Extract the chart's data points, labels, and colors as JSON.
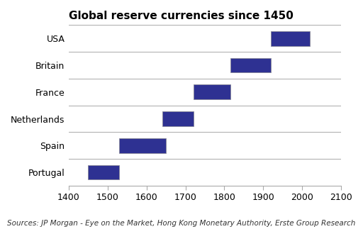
{
  "title": "Global reserve currencies since 1450",
  "categories": [
    "Portugal",
    "Spain",
    "Netherlands",
    "France",
    "Britain",
    "USA"
  ],
  "bar_starts": [
    1450,
    1530,
    1640,
    1720,
    1815,
    1920
  ],
  "bar_ends": [
    1530,
    1650,
    1720,
    1815,
    1920,
    2020
  ],
  "bar_color": "#2e3192",
  "bar_edge_color": "#888899",
  "xlim": [
    1400,
    2100
  ],
  "xticks": [
    1400,
    1500,
    1600,
    1700,
    1800,
    1900,
    2000,
    2100
  ],
  "background_color": "#ffffff",
  "plot_background": "#ffffff",
  "title_fontsize": 11,
  "axis_label_fontsize": 9,
  "ytick_fontsize": 9,
  "source_text": "Sources: JP Morgan - Eye on the Market, Hong Kong Monetary Authority, Erste Group Research",
  "source_fontsize": 7.5
}
